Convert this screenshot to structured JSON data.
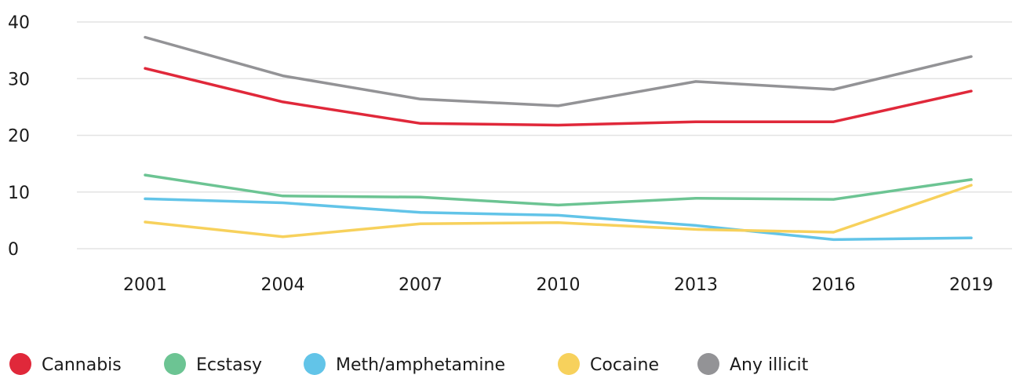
{
  "chart_data": {
    "type": "line",
    "title": "",
    "xlabel": "",
    "ylabel": "",
    "x": [
      "2001",
      "2004",
      "2007",
      "2010",
      "2013",
      "2016",
      "2019"
    ],
    "y_ticks": [
      "0",
      "10",
      "20",
      "30",
      "40"
    ],
    "ylim": [
      0,
      40
    ],
    "grid": true,
    "legend_position": "bottom",
    "series": [
      {
        "name": "Cannabis",
        "color": "#e0283a",
        "values": [
          31.8,
          25.9,
          22.1,
          21.8,
          22.4,
          22.4,
          27.8
        ]
      },
      {
        "name": "Ecstasy",
        "color": "#6cc493",
        "values": [
          13.0,
          9.3,
          9.1,
          7.7,
          8.9,
          8.7,
          12.2
        ]
      },
      {
        "name": "Meth/amphetamine",
        "color": "#62c4e8",
        "values": [
          8.8,
          8.1,
          6.4,
          5.9,
          4.1,
          1.6,
          1.9
        ]
      },
      {
        "name": "Cocaine",
        "color": "#f7d15c",
        "values": [
          4.7,
          2.1,
          4.4,
          4.6,
          3.4,
          2.9,
          11.2
        ]
      },
      {
        "name": "Any illicit",
        "color": "#939396",
        "values": [
          37.3,
          30.5,
          26.4,
          25.2,
          29.5,
          28.1,
          33.9
        ]
      }
    ]
  }
}
